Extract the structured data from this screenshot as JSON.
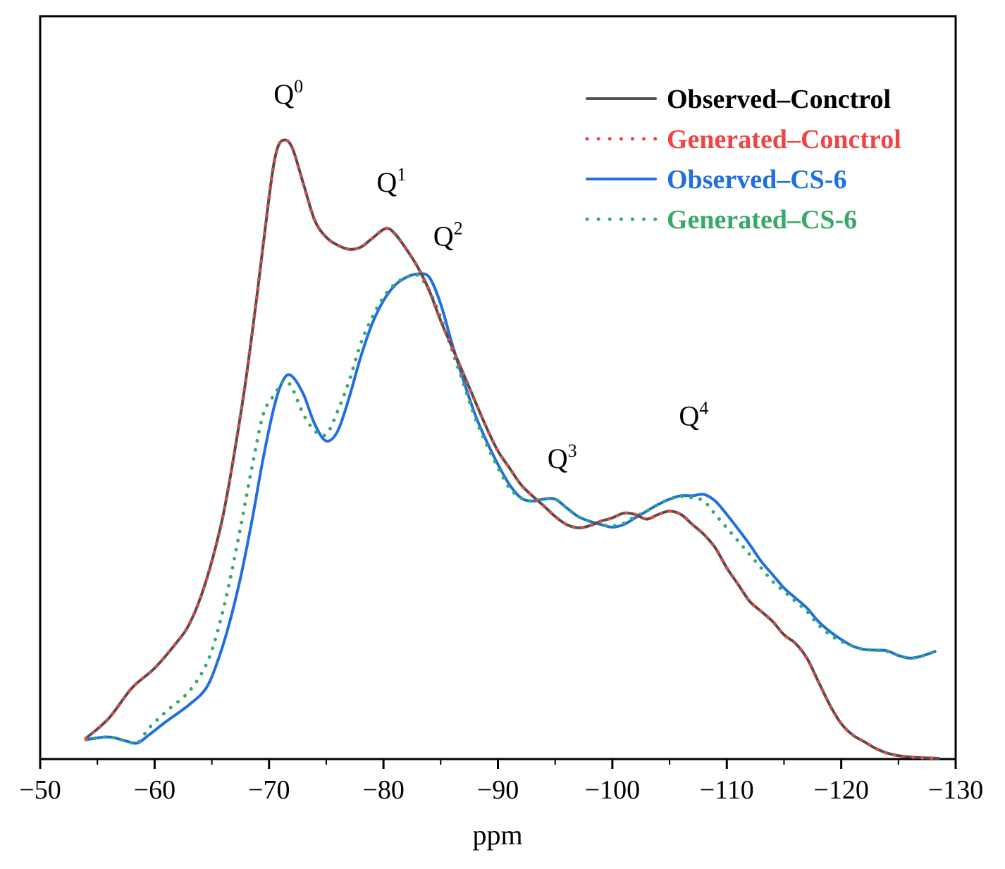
{
  "chart_data": {
    "type": "line",
    "title": "",
    "xlabel": "ppm",
    "ylabel": "",
    "xlim": [
      -50,
      -130
    ],
    "ylim": [
      0,
      100
    ],
    "x_ticks": [
      -50,
      -60,
      -70,
      -80,
      -90,
      -100,
      -110,
      -120,
      -130
    ],
    "x_tick_labels": [
      "−50",
      "−60",
      "−70",
      "−80",
      "−90",
      "−100",
      "−110",
      "−120",
      "−130"
    ],
    "legend_position": "top-right",
    "series": [
      {
        "name": "Observed–Conctrol",
        "color": "#505050",
        "style": "solid",
        "points": [
          [
            -54,
            3
          ],
          [
            -56,
            6
          ],
          [
            -58,
            10.5
          ],
          [
            -60,
            13.5
          ],
          [
            -62,
            17.5
          ],
          [
            -63,
            20
          ],
          [
            -64,
            24
          ],
          [
            -65,
            29.5
          ],
          [
            -66,
            36.5
          ],
          [
            -67,
            46
          ],
          [
            -68,
            57
          ],
          [
            -69,
            70
          ],
          [
            -70,
            84
          ],
          [
            -70.6,
            90.5
          ],
          [
            -71.2,
            92.5
          ],
          [
            -72,
            91.5
          ],
          [
            -73,
            86
          ],
          [
            -74,
            80.5
          ],
          [
            -75,
            78
          ],
          [
            -76,
            76.8
          ],
          [
            -77,
            76.2
          ],
          [
            -78,
            76.5
          ],
          [
            -79,
            77.8
          ],
          [
            -80.2,
            79.3
          ],
          [
            -81,
            78.5
          ],
          [
            -82,
            76.2
          ],
          [
            -83,
            73.5
          ],
          [
            -84,
            70
          ],
          [
            -85,
            65.5
          ],
          [
            -86,
            61.5
          ],
          [
            -87,
            57.5
          ],
          [
            -88,
            53.5
          ],
          [
            -89,
            49.5
          ],
          [
            -90,
            46
          ],
          [
            -91,
            43.5
          ],
          [
            -92,
            41
          ],
          [
            -93,
            39.3
          ],
          [
            -94,
            37.8
          ],
          [
            -95,
            36.2
          ],
          [
            -96,
            35
          ],
          [
            -97,
            34.5
          ],
          [
            -98,
            34.8
          ],
          [
            -99,
            35.5
          ],
          [
            -100,
            36
          ],
          [
            -101,
            36.7
          ],
          [
            -102,
            36.5
          ],
          [
            -103,
            35.8
          ],
          [
            -104,
            36.5
          ],
          [
            -105,
            37
          ],
          [
            -106,
            36.5
          ],
          [
            -107,
            35
          ],
          [
            -108,
            33.5
          ],
          [
            -109,
            31.5
          ],
          [
            -110,
            28.5
          ],
          [
            -111,
            26
          ],
          [
            -112,
            23.5
          ],
          [
            -113,
            22
          ],
          [
            -114,
            20.5
          ],
          [
            -115,
            18.5
          ],
          [
            -116,
            17.2
          ],
          [
            -117,
            15
          ],
          [
            -118,
            11.5
          ],
          [
            -119,
            8
          ],
          [
            -120,
            5.2
          ],
          [
            -121,
            3.5
          ],
          [
            -122,
            2.5
          ],
          [
            -123,
            1.5
          ],
          [
            -124,
            0.8
          ],
          [
            -125,
            0.4
          ],
          [
            -126,
            0.2
          ],
          [
            -127,
            0.1
          ],
          [
            -128.5,
            0
          ]
        ]
      },
      {
        "name": "Generated–Conctrol",
        "color": "#ef4444",
        "style": "dotted",
        "points": [
          [
            -54,
            3
          ],
          [
            -56,
            6
          ],
          [
            -58,
            10.5
          ],
          [
            -60,
            13.5
          ],
          [
            -62,
            17.5
          ],
          [
            -63,
            20
          ],
          [
            -64,
            24
          ],
          [
            -65,
            29.5
          ],
          [
            -66,
            36.5
          ],
          [
            -67,
            46
          ],
          [
            -68,
            57
          ],
          [
            -69,
            70
          ],
          [
            -70,
            84
          ],
          [
            -70.6,
            90.5
          ],
          [
            -71.2,
            92.5
          ],
          [
            -72,
            91.5
          ],
          [
            -73,
            86
          ],
          [
            -74,
            80.5
          ],
          [
            -75,
            78
          ],
          [
            -76,
            76.8
          ],
          [
            -77,
            76.2
          ],
          [
            -78,
            76.5
          ],
          [
            -79,
            77.8
          ],
          [
            -80.2,
            79.3
          ],
          [
            -81,
            78.5
          ],
          [
            -82,
            76.2
          ],
          [
            -83,
            73.5
          ],
          [
            -84,
            70
          ],
          [
            -85,
            65.5
          ],
          [
            -86,
            61.5
          ],
          [
            -87,
            57.5
          ],
          [
            -88,
            53.5
          ],
          [
            -89,
            49.5
          ],
          [
            -90,
            46
          ],
          [
            -91,
            43.5
          ],
          [
            -92,
            41
          ],
          [
            -93,
            39.3
          ],
          [
            -94,
            37.8
          ],
          [
            -95,
            36.2
          ],
          [
            -96,
            35
          ],
          [
            -97,
            34.5
          ],
          [
            -98,
            34.8
          ],
          [
            -99,
            35.5
          ],
          [
            -100,
            36
          ],
          [
            -101,
            36.7
          ],
          [
            -102,
            36.5
          ],
          [
            -103,
            35.8
          ],
          [
            -104,
            36.5
          ],
          [
            -105,
            37
          ],
          [
            -106,
            36.5
          ],
          [
            -107,
            35
          ],
          [
            -108,
            33.5
          ],
          [
            -109,
            31.5
          ],
          [
            -110,
            28.5
          ],
          [
            -111,
            26
          ],
          [
            -112,
            23.5
          ],
          [
            -113,
            22
          ],
          [
            -114,
            20.5
          ],
          [
            -115,
            18.5
          ],
          [
            -116,
            17.2
          ],
          [
            -117,
            15
          ],
          [
            -118,
            11.5
          ],
          [
            -119,
            8
          ],
          [
            -120,
            5.2
          ],
          [
            -121,
            3.5
          ],
          [
            -122,
            2.5
          ],
          [
            -123,
            1.5
          ],
          [
            -124,
            0.8
          ],
          [
            -125,
            0.4
          ],
          [
            -126,
            0.2
          ],
          [
            -127,
            0.1
          ],
          [
            -128.5,
            0
          ]
        ]
      },
      {
        "name": "Observed–CS-6",
        "color": "#1f6fe0",
        "style": "solid",
        "points": [
          [
            -54,
            2.8
          ],
          [
            -56,
            3.2
          ],
          [
            -57.5,
            2.6
          ],
          [
            -58.5,
            2.3
          ],
          [
            -59.5,
            3.5
          ],
          [
            -61,
            5.5
          ],
          [
            -63,
            8
          ],
          [
            -64.5,
            10.5
          ],
          [
            -65.5,
            14.5
          ],
          [
            -66.5,
            20
          ],
          [
            -67.5,
            27
          ],
          [
            -68.5,
            35.5
          ],
          [
            -69.5,
            45
          ],
          [
            -70.5,
            53
          ],
          [
            -71.3,
            56.8
          ],
          [
            -72,
            57.2
          ],
          [
            -73,
            54.5
          ],
          [
            -74,
            50
          ],
          [
            -75,
            47.5
          ],
          [
            -76,
            49
          ],
          [
            -77,
            54
          ],
          [
            -78,
            60
          ],
          [
            -79,
            65
          ],
          [
            -80,
            68.5
          ],
          [
            -81,
            70.8
          ],
          [
            -82,
            72
          ],
          [
            -83,
            72.5
          ],
          [
            -84,
            72
          ],
          [
            -85,
            68
          ],
          [
            -86,
            62
          ],
          [
            -87,
            56.5
          ],
          [
            -88,
            51.5
          ],
          [
            -89,
            47.5
          ],
          [
            -90,
            44
          ],
          [
            -91,
            41
          ],
          [
            -92,
            39
          ],
          [
            -93,
            38.5
          ],
          [
            -94,
            38.8
          ],
          [
            -95,
            38.8
          ],
          [
            -96,
            37.5
          ],
          [
            -97,
            36.2
          ],
          [
            -98,
            35.5
          ],
          [
            -99,
            35
          ],
          [
            -100,
            34.6
          ],
          [
            -101,
            35
          ],
          [
            -102,
            36
          ],
          [
            -103,
            37
          ],
          [
            -104,
            38
          ],
          [
            -105,
            38.8
          ],
          [
            -106,
            39.3
          ],
          [
            -107,
            39.3
          ],
          [
            -108,
            39.5
          ],
          [
            -109,
            38.5
          ],
          [
            -110,
            36.5
          ],
          [
            -111,
            34.3
          ],
          [
            -112,
            32
          ],
          [
            -113,
            29.5
          ],
          [
            -114,
            27.5
          ],
          [
            -115,
            25.5
          ],
          [
            -116,
            24
          ],
          [
            -117,
            22.5
          ],
          [
            -118,
            20.5
          ],
          [
            -119,
            19
          ],
          [
            -120,
            17.8
          ],
          [
            -121,
            16.8
          ],
          [
            -122,
            16.3
          ],
          [
            -123,
            16.2
          ],
          [
            -124,
            16.1
          ],
          [
            -125,
            15.4
          ],
          [
            -126,
            15
          ],
          [
            -127,
            15.3
          ],
          [
            -128.2,
            16
          ]
        ]
      },
      {
        "name": "Generated–CS-6",
        "color": "#3aa86a",
        "style": "dotted",
        "points": [
          [
            -54,
            2.8
          ],
          [
            -56,
            3.2
          ],
          [
            -57.5,
            2.6
          ],
          [
            -58.5,
            2.3
          ],
          [
            -59.5,
            4.5
          ],
          [
            -61,
            7
          ],
          [
            -63,
            10
          ],
          [
            -64.5,
            14
          ],
          [
            -65.5,
            19
          ],
          [
            -66.5,
            26
          ],
          [
            -67.5,
            34.5
          ],
          [
            -68.5,
            43.5
          ],
          [
            -69.5,
            51.5
          ],
          [
            -70.5,
            54.5
          ],
          [
            -71.3,
            56.5
          ],
          [
            -72,
            55.5
          ],
          [
            -73,
            51.5
          ],
          [
            -74,
            49
          ],
          [
            -75,
            48.5
          ],
          [
            -76,
            52
          ],
          [
            -77,
            56.5
          ],
          [
            -78,
            62
          ],
          [
            -79,
            66
          ],
          [
            -80,
            69
          ],
          [
            -81,
            71
          ],
          [
            -82,
            72
          ],
          [
            -83,
            72.3
          ],
          [
            -84,
            70
          ],
          [
            -85,
            66
          ],
          [
            -86,
            61
          ],
          [
            -87,
            56
          ],
          [
            -88,
            51
          ],
          [
            -89,
            47
          ],
          [
            -90,
            43.5
          ],
          [
            -91,
            40.5
          ],
          [
            -92,
            39
          ],
          [
            -93,
            38.5
          ],
          [
            -94,
            38.8
          ],
          [
            -95,
            38.8
          ],
          [
            -96,
            37.5
          ],
          [
            -97,
            36.2
          ],
          [
            -98,
            35.5
          ],
          [
            -99,
            35
          ],
          [
            -100,
            34.8
          ],
          [
            -101,
            35.2
          ],
          [
            -102,
            36.2
          ],
          [
            -103,
            37
          ],
          [
            -104,
            38
          ],
          [
            -105,
            38.8
          ],
          [
            -106,
            39.2
          ],
          [
            -107,
            39
          ],
          [
            -108,
            38.5
          ],
          [
            -109,
            36.5
          ],
          [
            -110,
            34.5
          ],
          [
            -111,
            32.5
          ],
          [
            -112,
            30.5
          ],
          [
            -113,
            28.5
          ],
          [
            -114,
            26.5
          ],
          [
            -115,
            25
          ],
          [
            -116,
            23.5
          ],
          [
            -117,
            22
          ],
          [
            -118,
            20
          ],
          [
            -119,
            18.5
          ],
          [
            -120,
            17.5
          ],
          [
            -121,
            16.8
          ],
          [
            -122,
            16.3
          ],
          [
            -123,
            16.2
          ],
          [
            -124,
            16
          ],
          [
            -125,
            15.4
          ],
          [
            -126,
            15
          ],
          [
            -127,
            15.3
          ],
          [
            -128.2,
            16
          ]
        ]
      }
    ],
    "annotations": [
      {
        "base": "Q",
        "sup": "0",
        "x": -71.2,
        "y": 92.5
      },
      {
        "base": "Q",
        "sup": "1",
        "x": -80.2,
        "y": 79.3
      },
      {
        "base": "Q",
        "sup": "2",
        "x": -83.3,
        "y": 72.5
      },
      {
        "base": "Q",
        "sup": "3",
        "x": -95,
        "y": 38.8
      },
      {
        "base": "Q",
        "sup": "4",
        "x": -106,
        "y": 39.3
      }
    ]
  }
}
